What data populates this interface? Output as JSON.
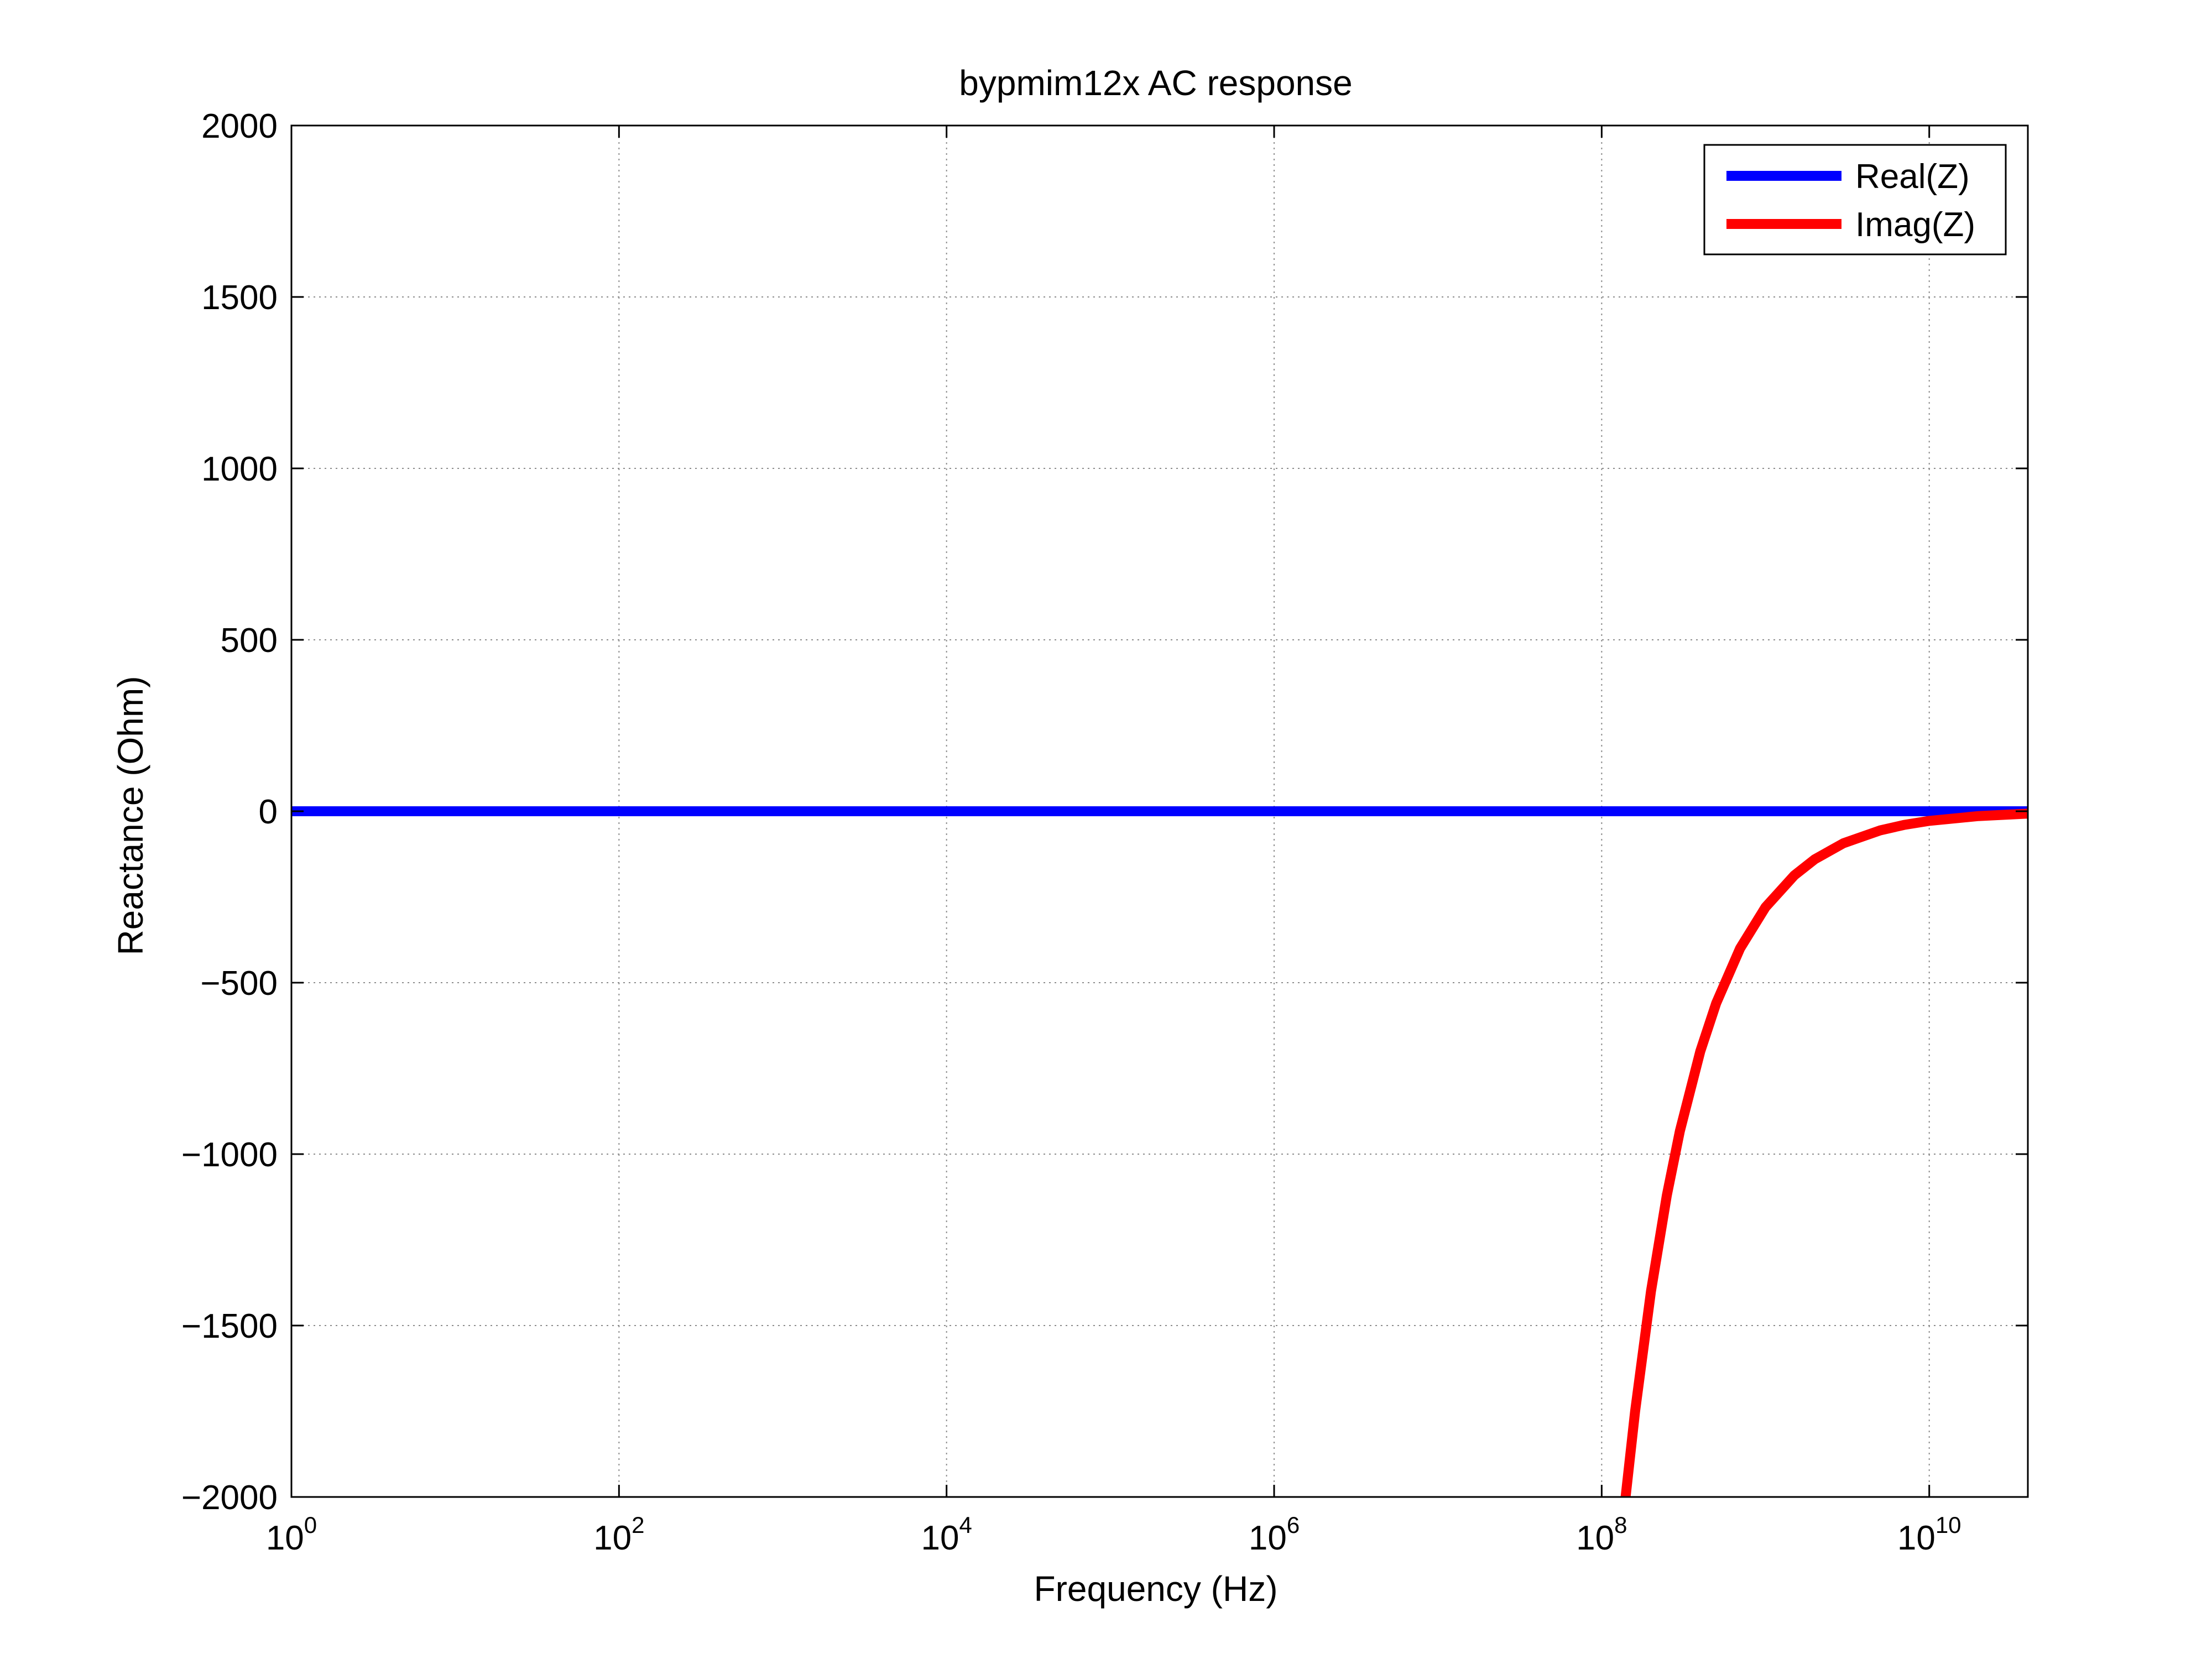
{
  "chart_data": {
    "type": "line",
    "title": "bypmim12x AC response",
    "xlabel": "Frequency (Hz)",
    "ylabel": "Reactance (Ohm)",
    "x_scale": "log",
    "xlim": [
      1,
      40000000000
    ],
    "ylim": [
      -2000,
      2000
    ],
    "grid": true,
    "legend_position": "top-right",
    "x_ticks": [
      {
        "base": "10",
        "exp": "0",
        "value": 1
      },
      {
        "base": "10",
        "exp": "2",
        "value": 100
      },
      {
        "base": "10",
        "exp": "4",
        "value": 10000
      },
      {
        "base": "10",
        "exp": "6",
        "value": 1000000
      },
      {
        "base": "10",
        "exp": "8",
        "value": 100000000
      },
      {
        "base": "10",
        "exp": "10",
        "value": 10000000000
      }
    ],
    "y_ticks": [
      {
        "label": "2000",
        "value": 2000
      },
      {
        "label": "1500",
        "value": 1500
      },
      {
        "label": "1000",
        "value": 1000
      },
      {
        "label": "500",
        "value": 500
      },
      {
        "label": "0",
        "value": 0
      },
      {
        "label": "−500",
        "value": -500
      },
      {
        "label": "−1000",
        "value": -1000
      },
      {
        "label": "−1500",
        "value": -1500
      },
      {
        "label": "−2000",
        "value": -2000
      }
    ],
    "series": [
      {
        "name": "Real(Z)",
        "color": "#0000ff",
        "x": [
          1,
          10,
          100,
          1000,
          10000,
          100000,
          1000000,
          10000000,
          100000000,
          1000000000,
          10000000000,
          40000000000
        ],
        "values": [
          0,
          0,
          0,
          0,
          0,
          0,
          0,
          0,
          0,
          0,
          0,
          0
        ]
      },
      {
        "name": "Imag(Z)",
        "color": "#ff0000",
        "x": [
          140000000,
          160000000,
          200000000,
          250000000,
          300000000,
          400000000,
          500000000,
          700000000,
          1000000000,
          1500000000,
          2000000000,
          3000000000,
          5000000000,
          7000000000,
          10000000000,
          20000000000,
          40000000000
        ],
        "values": [
          -2000,
          -1750,
          -1400,
          -1120,
          -933,
          -700,
          -560,
          -400,
          -280,
          -187,
          -140,
          -93,
          -56,
          -40,
          -28,
          -14,
          -7
        ]
      }
    ]
  }
}
